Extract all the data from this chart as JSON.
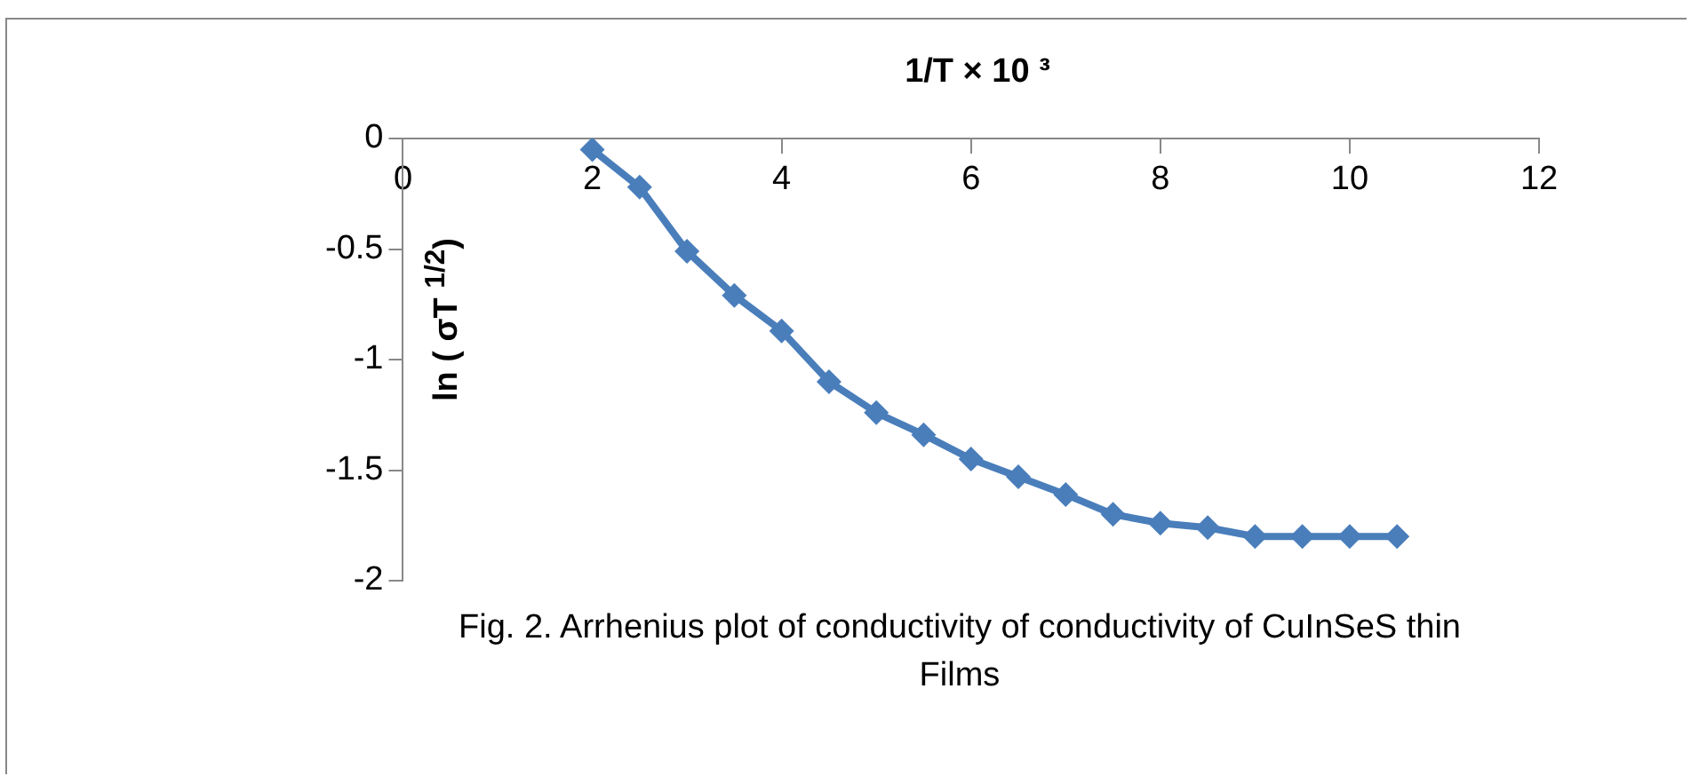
{
  "chart_data": {
    "type": "line",
    "xlabel": "1/T × 10 ³",
    "ylabel": "ln ( σT $^{1/2}$)",
    "annotations": [
      "Fig. 2.  Arrhenius plot of conductivity of conductivity of CuInSeS thin Films"
    ],
    "x": [
      2,
      2.5,
      3,
      3.5,
      4,
      4.5,
      5,
      5.5,
      6,
      6.5,
      7,
      7.5,
      8,
      8.5,
      9,
      9.5,
      10,
      10.5
    ],
    "series": [
      {
        "color": "#4a7ebb",
        "values": [
          -0.05,
          -0.22,
          -0.51,
          -0.71,
          -0.87,
          -1.1,
          -1.24,
          -1.34,
          -1.45,
          -1.53,
          -1.61,
          -1.7,
          -1.74,
          -1.76,
          -1.8,
          -1.8,
          -1.8,
          -1.8
        ]
      }
    ],
    "xlim": [
      0,
      12
    ],
    "xticks": [
      0,
      2,
      4,
      6,
      8,
      10,
      12
    ],
    "ylim": [
      -2,
      0
    ],
    "yticks": [
      -2,
      -1.5,
      -1,
      -0.5,
      0
    ],
    "grid": false,
    "legend": false,
    "marker": "diamond",
    "line_style": "solid"
  }
}
